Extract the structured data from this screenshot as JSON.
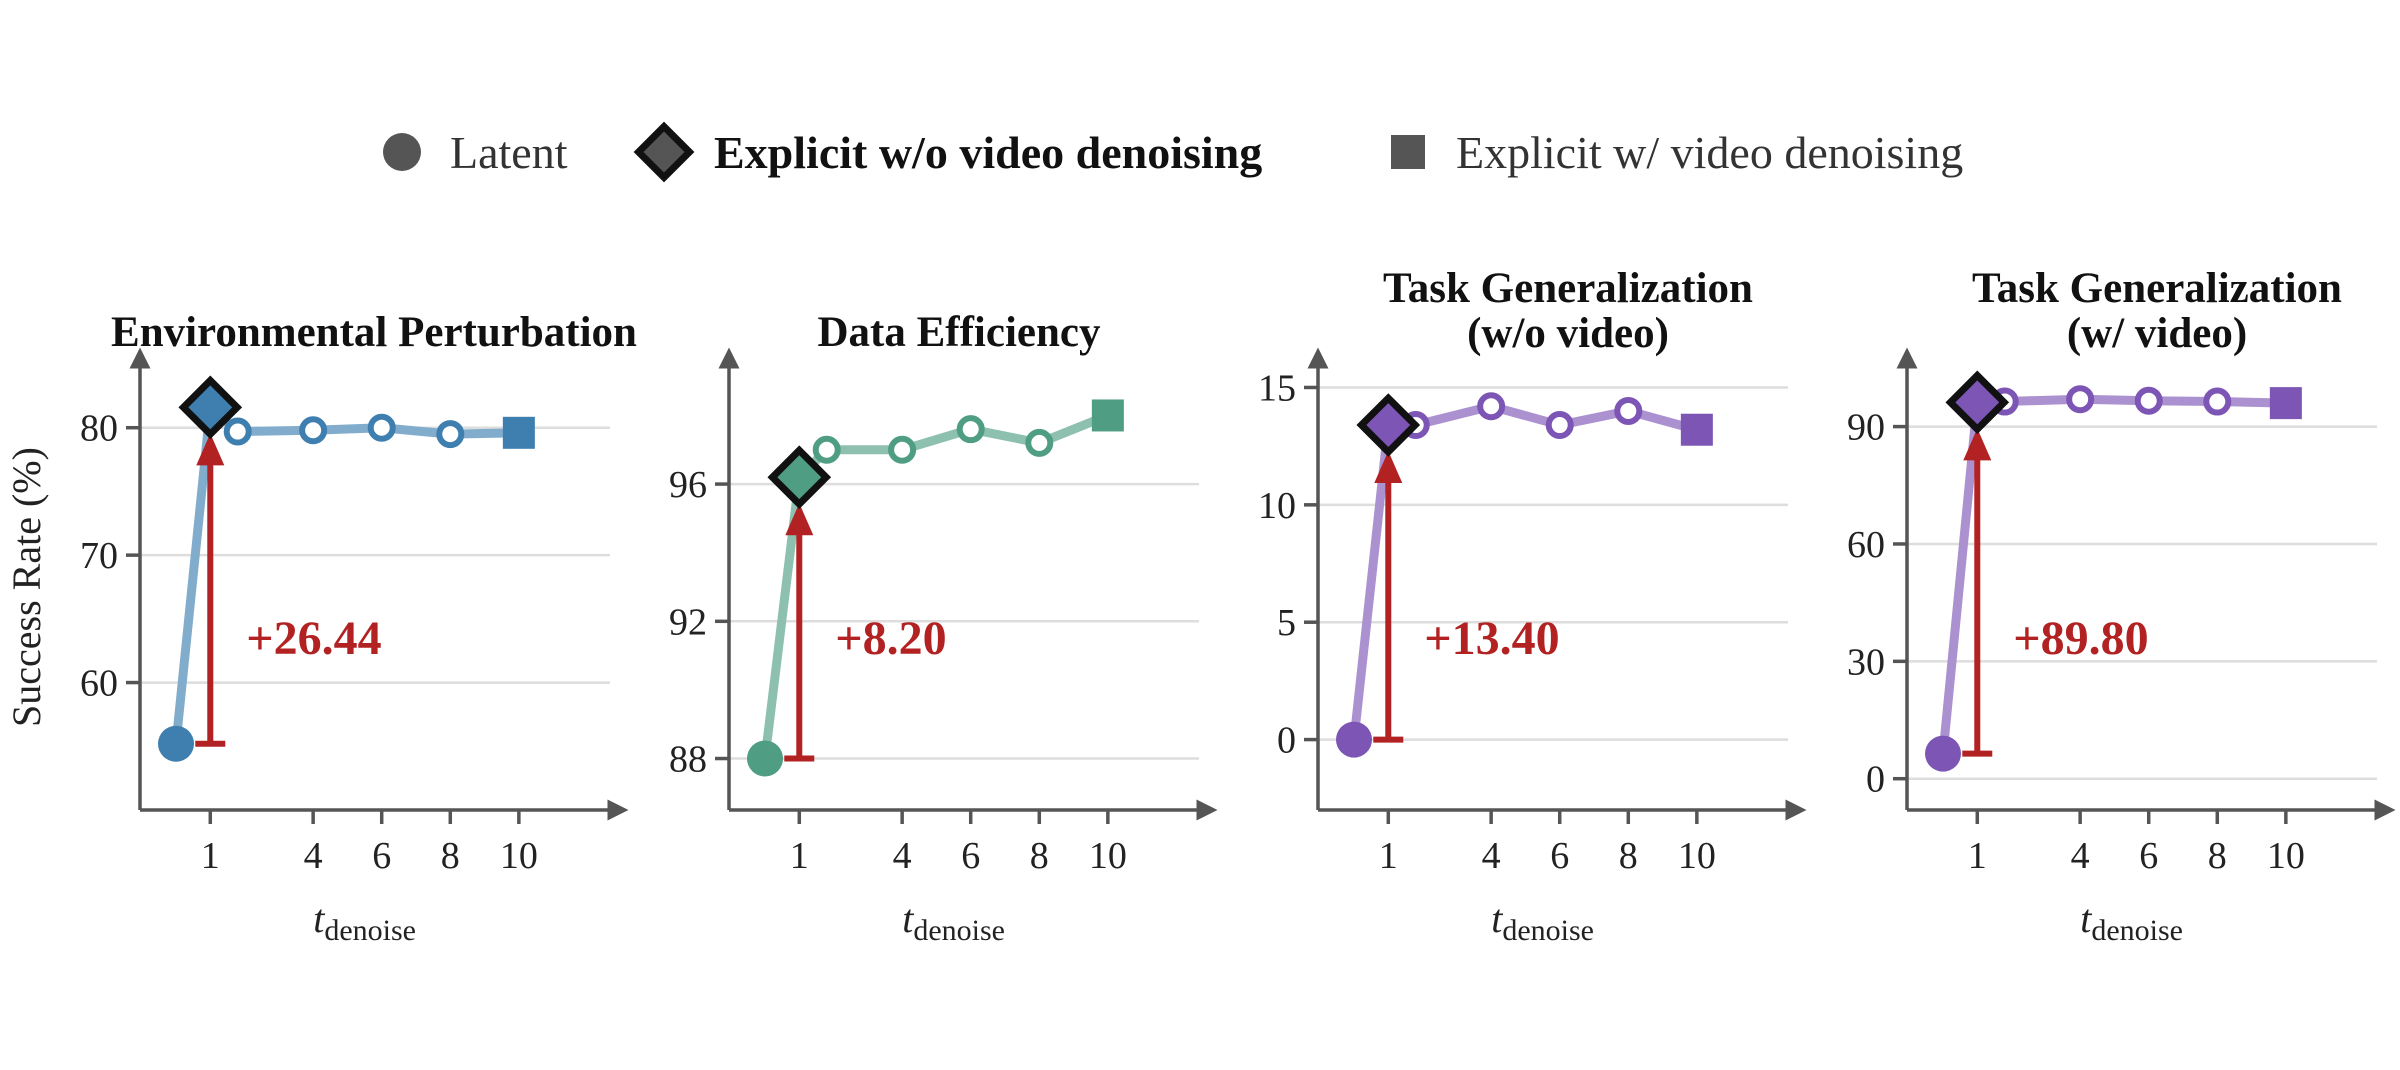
{
  "legend": {
    "items": [
      {
        "marker": "circle",
        "label": "Latent",
        "bold": false,
        "color": "#555555"
      },
      {
        "marker": "diamond",
        "label": "Explicit w/o video denoising",
        "bold": true,
        "color": "#555555"
      },
      {
        "marker": "square",
        "label": "Explicit w/ video denoising",
        "bold": false,
        "color": "#555555"
      }
    ]
  },
  "shared": {
    "ylabel": "Success Rate (%)",
    "xlabel_main": "t",
    "xlabel_sub": "denoise",
    "xticks": [
      1,
      4,
      6,
      8,
      10
    ],
    "annotation_color": "#b22222"
  },
  "chart_data": [
    {
      "type": "line",
      "title": [
        "Environmental Perturbation"
      ],
      "color": "#3f7fb0",
      "ylim": [
        50,
        85
      ],
      "yticks": [
        60,
        70,
        80
      ],
      "latent": {
        "x": 0,
        "y": 55.2
      },
      "explicit_without_video": {
        "x": 1,
        "y": 81.6
      },
      "series_x": [
        1.8,
        4,
        6,
        8
      ],
      "series_y": [
        79.7,
        79.8,
        80.0,
        79.5
      ],
      "explicit_with_video": {
        "x": 10,
        "y": 79.6
      },
      "improvement_label": "+26.44"
    },
    {
      "type": "line",
      "title": [
        "Data Efficiency"
      ],
      "color": "#4f9e84",
      "ylim": [
        86.5,
        99.5
      ],
      "yticks": [
        88,
        92,
        96
      ],
      "latent": {
        "x": 0,
        "y": 88.0
      },
      "explicit_without_video": {
        "x": 1,
        "y": 96.2
      },
      "series_x": [
        1.8,
        4,
        6,
        8
      ],
      "series_y": [
        97.0,
        97.0,
        97.6,
        97.2
      ],
      "explicit_with_video": {
        "x": 10,
        "y": 98.0
      },
      "improvement_label": "+8.20"
    },
    {
      "type": "line",
      "title": [
        "Task Generalization",
        "(w/o video)"
      ],
      "color": "#7d55b5",
      "ylim": [
        -3,
        16
      ],
      "yticks": [
        0,
        5,
        10,
        15
      ],
      "latent": {
        "x": 0,
        "y": 0
      },
      "explicit_without_video": {
        "x": 1,
        "y": 13.4
      },
      "series_x": [
        1.8,
        4,
        6,
        8
      ],
      "series_y": [
        13.4,
        14.2,
        13.4,
        14.0
      ],
      "explicit_with_video": {
        "x": 10,
        "y": 13.2
      },
      "improvement_label": "+13.40"
    },
    {
      "type": "line",
      "title": [
        "Task Generalization",
        "(w/ video)"
      ],
      "color": "#7d55b5",
      "ylim": [
        -8,
        106
      ],
      "yticks": [
        0,
        30,
        60,
        90
      ],
      "latent": {
        "x": 0,
        "y": 6.4
      },
      "explicit_without_video": {
        "x": 1,
        "y": 96.2
      },
      "series_x": [
        1.8,
        4,
        6,
        8
      ],
      "series_y": [
        96.4,
        97.0,
        96.6,
        96.4
      ],
      "explicit_with_video": {
        "x": 10,
        "y": 96.0
      },
      "improvement_label": "+89.80"
    }
  ]
}
